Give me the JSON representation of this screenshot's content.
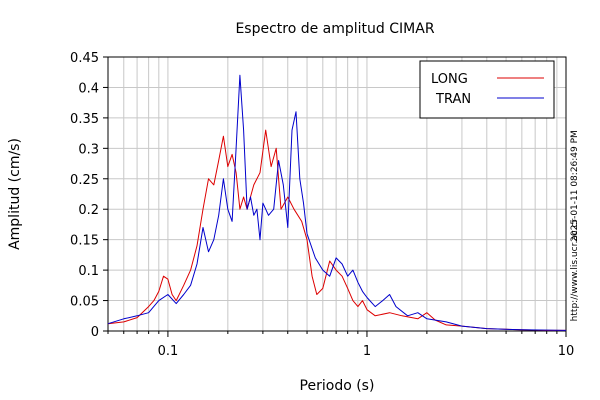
{
  "chart_data": {
    "type": "line",
    "title": "Espectro de amplitud CIMAR",
    "xlabel": "Periodo (s)",
    "ylabel": "Amplitud (cm/s)",
    "xscale": "log",
    "xlim": [
      0.05,
      10
    ],
    "ylim": [
      0,
      0.45
    ],
    "x_ticks": [
      0.1,
      1,
      10
    ],
    "x_tick_labels": [
      "0.1",
      "1",
      "10"
    ],
    "y_ticks": [
      0,
      0.05,
      0.1,
      0.15,
      0.2,
      0.25,
      0.3,
      0.35,
      0.4,
      0.45
    ],
    "y_tick_labels": [
      "0",
      "0.05",
      "0.1",
      "0.15",
      "0.2",
      "0.25",
      "0.3",
      "0.35",
      "0.4",
      "0.45"
    ],
    "grid": true,
    "legend_position": "top-right",
    "series": [
      {
        "name": "LONG",
        "color": "#dd0000",
        "points": [
          [
            0.05,
            0.012
          ],
          [
            0.06,
            0.015
          ],
          [
            0.07,
            0.022
          ],
          [
            0.08,
            0.04
          ],
          [
            0.085,
            0.05
          ],
          [
            0.09,
            0.065
          ],
          [
            0.095,
            0.09
          ],
          [
            0.1,
            0.085
          ],
          [
            0.105,
            0.06
          ],
          [
            0.11,
            0.05
          ],
          [
            0.12,
            0.075
          ],
          [
            0.13,
            0.1
          ],
          [
            0.14,
            0.14
          ],
          [
            0.15,
            0.2
          ],
          [
            0.16,
            0.25
          ],
          [
            0.17,
            0.24
          ],
          [
            0.18,
            0.28
          ],
          [
            0.19,
            0.32
          ],
          [
            0.2,
            0.27
          ],
          [
            0.21,
            0.29
          ],
          [
            0.22,
            0.26
          ],
          [
            0.23,
            0.2
          ],
          [
            0.24,
            0.22
          ],
          [
            0.25,
            0.2
          ],
          [
            0.27,
            0.24
          ],
          [
            0.29,
            0.26
          ],
          [
            0.31,
            0.33
          ],
          [
            0.33,
            0.27
          ],
          [
            0.35,
            0.3
          ],
          [
            0.37,
            0.2
          ],
          [
            0.4,
            0.22
          ],
          [
            0.43,
            0.2
          ],
          [
            0.47,
            0.18
          ],
          [
            0.5,
            0.15
          ],
          [
            0.53,
            0.09
          ],
          [
            0.56,
            0.06
          ],
          [
            0.6,
            0.07
          ],
          [
            0.65,
            0.115
          ],
          [
            0.7,
            0.1
          ],
          [
            0.75,
            0.09
          ],
          [
            0.8,
            0.07
          ],
          [
            0.85,
            0.05
          ],
          [
            0.9,
            0.04
          ],
          [
            0.95,
            0.05
          ],
          [
            1.0,
            0.035
          ],
          [
            1.1,
            0.025
          ],
          [
            1.3,
            0.03
          ],
          [
            1.5,
            0.025
          ],
          [
            1.8,
            0.02
          ],
          [
            2.0,
            0.03
          ],
          [
            2.2,
            0.018
          ],
          [
            2.5,
            0.01
          ],
          [
            3.0,
            0.008
          ],
          [
            4.0,
            0.004
          ],
          [
            6.0,
            0.002
          ],
          [
            8.0,
            0.001
          ],
          [
            10.0,
            0.001
          ]
        ]
      },
      {
        "name": "TRAN",
        "color": "#0000cc",
        "points": [
          [
            0.05,
            0.012
          ],
          [
            0.06,
            0.02
          ],
          [
            0.07,
            0.025
          ],
          [
            0.08,
            0.03
          ],
          [
            0.09,
            0.05
          ],
          [
            0.1,
            0.06
          ],
          [
            0.11,
            0.045
          ],
          [
            0.12,
            0.06
          ],
          [
            0.13,
            0.075
          ],
          [
            0.14,
            0.11
          ],
          [
            0.15,
            0.17
          ],
          [
            0.16,
            0.13
          ],
          [
            0.17,
            0.15
          ],
          [
            0.18,
            0.19
          ],
          [
            0.19,
            0.25
          ],
          [
            0.2,
            0.2
          ],
          [
            0.21,
            0.18
          ],
          [
            0.22,
            0.3
          ],
          [
            0.23,
            0.42
          ],
          [
            0.24,
            0.33
          ],
          [
            0.25,
            0.2
          ],
          [
            0.26,
            0.22
          ],
          [
            0.27,
            0.19
          ],
          [
            0.28,
            0.2
          ],
          [
            0.29,
            0.15
          ],
          [
            0.3,
            0.21
          ],
          [
            0.32,
            0.19
          ],
          [
            0.34,
            0.2
          ],
          [
            0.36,
            0.28
          ],
          [
            0.38,
            0.24
          ],
          [
            0.4,
            0.17
          ],
          [
            0.42,
            0.33
          ],
          [
            0.44,
            0.36
          ],
          [
            0.46,
            0.25
          ],
          [
            0.48,
            0.21
          ],
          [
            0.5,
            0.16
          ],
          [
            0.55,
            0.12
          ],
          [
            0.6,
            0.1
          ],
          [
            0.65,
            0.09
          ],
          [
            0.7,
            0.12
          ],
          [
            0.75,
            0.11
          ],
          [
            0.8,
            0.09
          ],
          [
            0.85,
            0.1
          ],
          [
            0.9,
            0.08
          ],
          [
            0.95,
            0.065
          ],
          [
            1.0,
            0.055
          ],
          [
            1.1,
            0.04
          ],
          [
            1.2,
            0.05
          ],
          [
            1.3,
            0.06
          ],
          [
            1.4,
            0.04
          ],
          [
            1.6,
            0.025
          ],
          [
            1.8,
            0.03
          ],
          [
            2.0,
            0.02
          ],
          [
            2.5,
            0.015
          ],
          [
            3.0,
            0.008
          ],
          [
            4.0,
            0.004
          ],
          [
            6.0,
            0.002
          ],
          [
            10.0,
            0.001
          ]
        ]
      }
    ]
  },
  "side_text": {
    "timestamp": "2025-01-11 08:26:49 PM",
    "url": "http://www.lis.ucr.ac.cr"
  }
}
